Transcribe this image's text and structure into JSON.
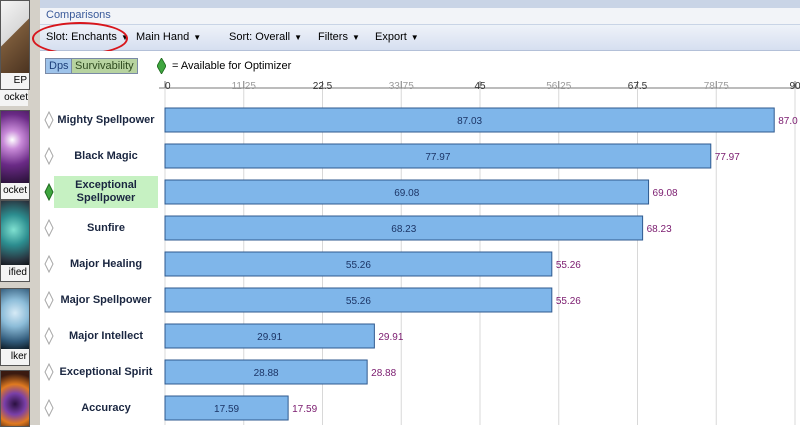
{
  "window": {
    "title": "Comparisons"
  },
  "toolbar": {
    "slot": "Slot: Enchants",
    "hand": "Main Hand",
    "sort": "Sort: Overall",
    "filters": "Filters",
    "export": "Export"
  },
  "tabs": {
    "dps": "Dps",
    "survivability": "Survivability"
  },
  "legend": {
    "text": "= Available for Optimizer"
  },
  "left_items": [
    {
      "caption": "EP"
    },
    {
      "caption": "ocket"
    },
    {
      "caption": "ocket"
    },
    {
      "caption": "ified"
    },
    {
      "caption": "lker"
    }
  ],
  "colors": {
    "bar_fill": "#7fb6ea",
    "bar_stroke": "#2f5a8f",
    "value_inside": "#1c3566",
    "value_outside": "#7a1a6e",
    "selected_row": "#c6f1c2",
    "diamond_available": "#3fa63f",
    "circle_highlight": "#d8161c"
  },
  "chart_data": {
    "type": "bar",
    "orientation": "horizontal",
    "xlim": [
      0,
      90
    ],
    "ticks": [
      "0",
      "11.25",
      "22.5",
      "33.75",
      "45",
      "56.25",
      "67.5",
      "78.75",
      "90"
    ],
    "categories": [
      "Mighty Spellpower",
      "Black Magic",
      "Exceptional Spellpower",
      "Sunfire",
      "Major Healing",
      "Major Spellpower",
      "Major Intellect",
      "Exceptional Spirit",
      "Accuracy"
    ],
    "values": [
      87.03,
      77.97,
      69.08,
      68.23,
      55.26,
      55.26,
      29.91,
      28.88,
      17.59
    ],
    "value_labels": [
      "87.03",
      "77.97",
      "69.08",
      "68.23",
      "55.26",
      "55.26",
      "29.91",
      "28.88",
      "17.59"
    ],
    "outside_labels": [
      "87.0",
      "77.97",
      "69.08",
      "68.23",
      "55.26",
      "55.26",
      "29.91",
      "28.88",
      "17.59"
    ],
    "selected_index": 2,
    "available": [
      false,
      false,
      true,
      false,
      false,
      false,
      false,
      false,
      false
    ],
    "grid": true
  }
}
